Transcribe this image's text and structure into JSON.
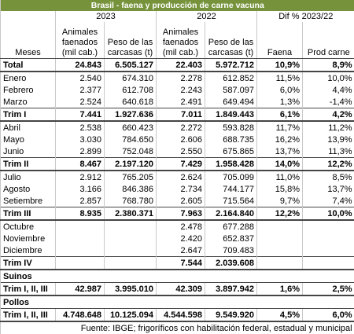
{
  "header": {
    "title": "Brasil - faena y producción de carne vacuna",
    "groups": [
      "2023",
      "2022",
      "Dif % 2023/22"
    ],
    "columns": [
      "Meses",
      "Animales faenados (mil cab.)",
      "Peso de las carcasas (t)",
      "Animales faenados (mil cab.)",
      "Peso de las carcasas (t)",
      "Faena",
      "Prod carne"
    ]
  },
  "table": {
    "rows": [
      {
        "style": "total",
        "label": "Total",
        "cells": [
          "24.843",
          "6.505.127",
          "22.403",
          "5.972.712",
          "10,9%",
          "8,9%"
        ]
      },
      {
        "style": "month",
        "label": "Enero",
        "cells": [
          "2.540",
          "674.310",
          "2.278",
          "612.852",
          "11,5%",
          "10,0%"
        ]
      },
      {
        "style": "month",
        "label": "Febrero",
        "cells": [
          "2.377",
          "612.708",
          "2.243",
          "587.097",
          "6,0%",
          "4,4%"
        ]
      },
      {
        "style": "month",
        "label": "Marzo",
        "cells": [
          "2.524",
          "640.618",
          "2.491",
          "649.494",
          "1,3%",
          "-1,4%"
        ]
      },
      {
        "style": "trim",
        "label": "Trim I",
        "cells": [
          "7.441",
          "1.927.636",
          "7.011",
          "1.849.443",
          "6,1%",
          "4,2%"
        ]
      },
      {
        "style": "month",
        "label": "Abril",
        "cells": [
          "2.538",
          "660.423",
          "2.272",
          "593.828",
          "11,7%",
          "11,2%"
        ]
      },
      {
        "style": "month",
        "label": "Mayo",
        "cells": [
          "3.030",
          "784.650",
          "2.606",
          "688.735",
          "16,2%",
          "13,9%"
        ]
      },
      {
        "style": "month",
        "label": "Junio",
        "cells": [
          "2.899",
          "752.048",
          "2.550",
          "675.865",
          "13,7%",
          "11,3%"
        ]
      },
      {
        "style": "trim",
        "label": "Trim II",
        "cells": [
          "8.467",
          "2.197.120",
          "7.429",
          "1.958.428",
          "14,0%",
          "12,2%"
        ]
      },
      {
        "style": "month",
        "label": "Julio",
        "cells": [
          "2.912",
          "765.205",
          "2.624",
          "705.099",
          "11,0%",
          "8,5%"
        ]
      },
      {
        "style": "month",
        "label": "Agosto",
        "cells": [
          "3.166",
          "846.386",
          "2.734",
          "744.177",
          "15,8%",
          "13,7%"
        ]
      },
      {
        "style": "month",
        "label": "Setiembre",
        "cells": [
          "2.857",
          "768.780",
          "2.605",
          "715.564",
          "9,7%",
          "7,4%"
        ]
      },
      {
        "style": "trim",
        "label": "Trim III",
        "cells": [
          "8.935",
          "2.380.371",
          "7.963",
          "2.164.840",
          "12,2%",
          "10,0%"
        ]
      },
      {
        "style": "month",
        "label": "Octubre",
        "cells": [
          null,
          null,
          "2.478",
          "677.288",
          null,
          null
        ]
      },
      {
        "style": "month",
        "label": "Noviembre",
        "cells": [
          null,
          null,
          "2.420",
          "652.837",
          null,
          null
        ]
      },
      {
        "style": "month",
        "label": "Diciembre",
        "cells": [
          null,
          null,
          "2.647",
          "709.483",
          null,
          null
        ]
      },
      {
        "style": "trim",
        "label": "Trim IV",
        "cells": [
          null,
          null,
          "7.544",
          "2.039.608",
          null,
          null
        ]
      },
      {
        "style": "section",
        "label": "Suinos"
      },
      {
        "style": "trim",
        "label": "Trim I, II, III",
        "cells": [
          "42.987",
          "3.995.010",
          "42.309",
          "3.897.942",
          "1,6%",
          "2,5%"
        ]
      },
      {
        "style": "section",
        "label": "Pollos"
      },
      {
        "style": "trim",
        "label": "Trim I, II, III",
        "cells": [
          "4.748.648",
          "10.125.094",
          "4.544.598",
          "9.549.920",
          "4,5%",
          "6,0%"
        ]
      }
    ]
  },
  "footer": {
    "source": "Fuente: IBGE; frigoríficos con habilitación federal, estadual y municipal"
  }
}
